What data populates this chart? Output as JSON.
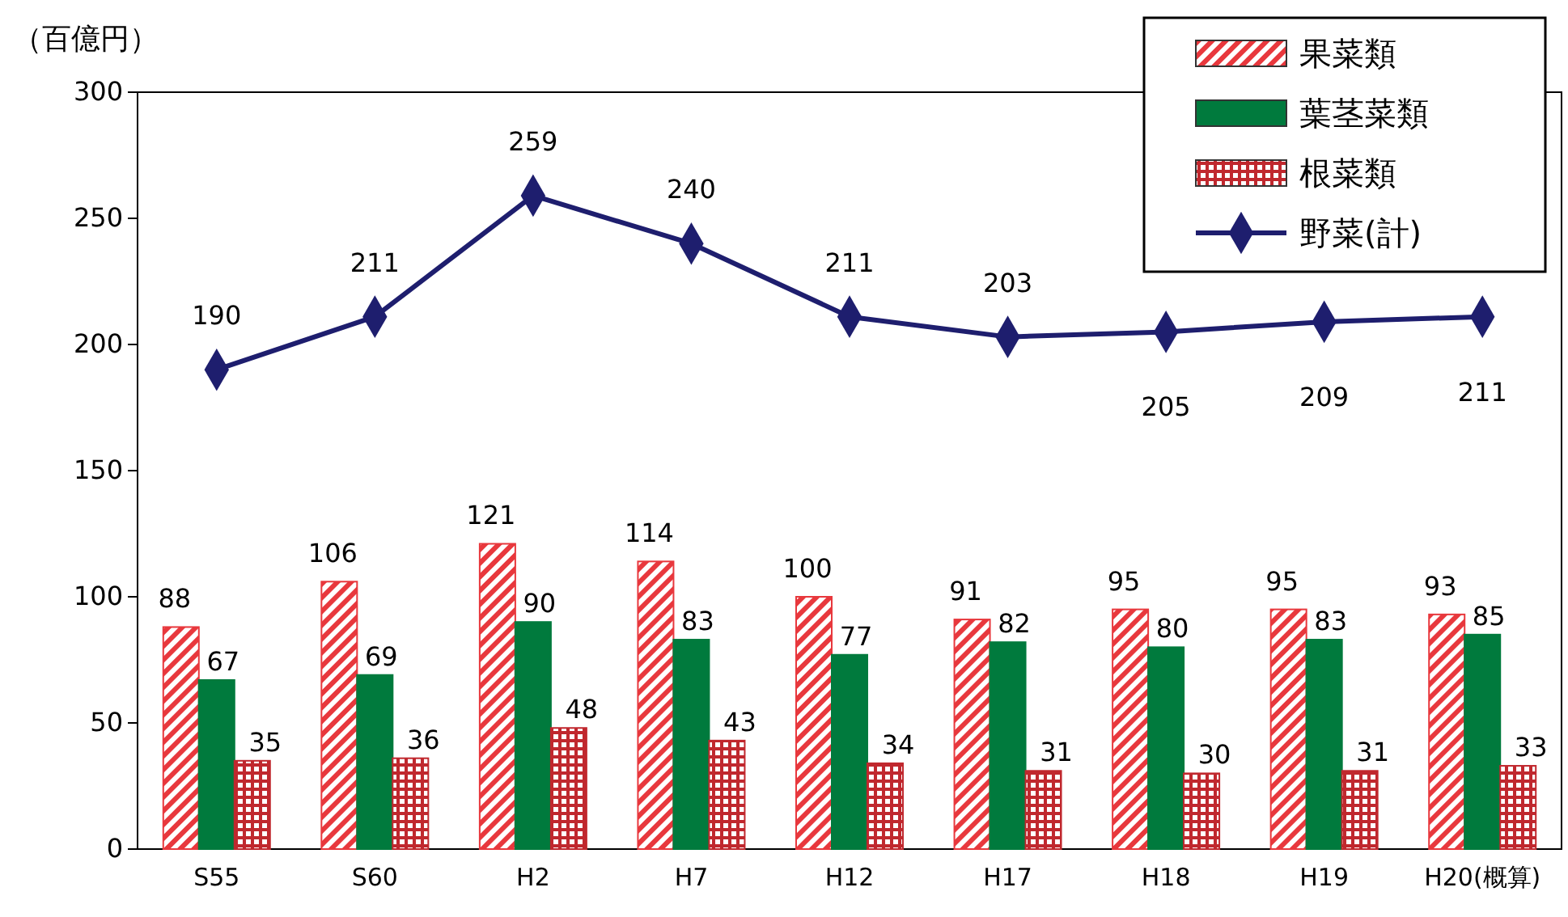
{
  "chart_data": {
    "type": "bar",
    "ylabel": "（百億円）",
    "categories": [
      "S55",
      "S60",
      "H2",
      "H7",
      "H12",
      "H17",
      "H18",
      "H19",
      "H20(概算)"
    ],
    "series": [
      {
        "name": "果菜類",
        "color": "#e8383d",
        "values": [
          88,
          106,
          121,
          114,
          100,
          91,
          95,
          95,
          93
        ]
      },
      {
        "name": "葉茎菜類",
        "color": "#007a3d",
        "values": [
          67,
          69,
          90,
          83,
          77,
          82,
          80,
          83,
          85
        ]
      },
      {
        "name": "根菜類",
        "color": "#c0282e",
        "values": [
          35,
          36,
          48,
          43,
          34,
          31,
          30,
          31,
          33
        ]
      },
      {
        "name": "野菜(計)",
        "type": "line",
        "color": "#1e1e6e",
        "marker": "diamond",
        "values": [
          190,
          211,
          259,
          240,
          211,
          203,
          205,
          209,
          211
        ]
      }
    ],
    "ylim": [
      0,
      300
    ],
    "yticks": [
      0,
      50,
      100,
      150,
      200,
      250,
      300
    ],
    "grid": false,
    "legend": "top right",
    "data_labels": true
  }
}
